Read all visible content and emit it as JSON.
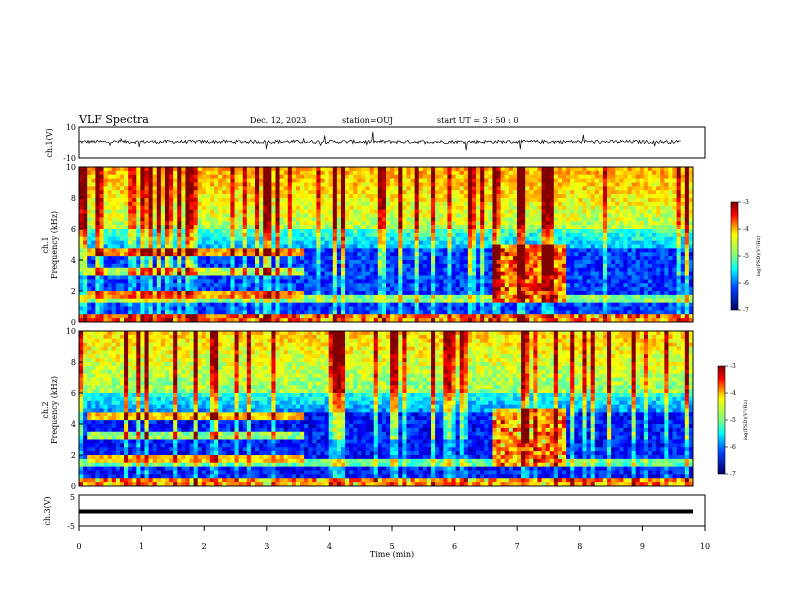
{
  "header": {
    "title": "VLF Spectra",
    "date": "Dec. 12, 2023",
    "station": "station=OUJ",
    "start": "start  UT =   3 : 50 : 0"
  },
  "chart_data": [
    {
      "type": "line",
      "panel": "ch1-waveform",
      "ylabel": "ch.1(V)",
      "ylim": [
        -10,
        10
      ],
      "yticks": [
        "10",
        "-10"
      ],
      "xlim": [
        0,
        10
      ],
      "series_summary": "noisy waveform centered near +1.5 V with sparse spikes"
    },
    {
      "type": "heatmap",
      "panel": "ch1-spectrogram",
      "ylabel": "ch.1\nFrequency (kHz)",
      "xlim": [
        0,
        10
      ],
      "ylim": [
        0,
        10
      ],
      "yticks": [
        "0",
        "2",
        "4",
        "6",
        "8",
        "10"
      ],
      "colorbar": {
        "label": "log(PSD)(V²/Hz)",
        "range": [
          -7,
          -3
        ],
        "ticks": [
          "-3",
          "-4",
          "-5",
          "-6",
          "-7"
        ]
      }
    },
    {
      "type": "heatmap",
      "panel": "ch2-spectrogram",
      "ylabel": "ch.2\nFrequency (kHz)",
      "xlim": [
        0,
        10
      ],
      "ylim": [
        0,
        10
      ],
      "yticks": [
        "0",
        "2",
        "4",
        "6",
        "8",
        "10"
      ],
      "colorbar": {
        "label": "log(PSD)(V²/Hz)",
        "range": [
          -7,
          -3
        ],
        "ticks": [
          "-3",
          "-4",
          "-5",
          "-6",
          "-7"
        ]
      }
    },
    {
      "type": "line",
      "panel": "ch3-waveform",
      "ylabel": "ch.3(V)",
      "ylim": [
        -5,
        5
      ],
      "yticks": [
        "5",
        "-5"
      ],
      "xlim": [
        0,
        10
      ],
      "series_summary": "flat line at about -1 V"
    }
  ],
  "xaxis": {
    "label": "Time  (min)",
    "ticks": [
      "0",
      "1",
      "2",
      "3",
      "4",
      "5",
      "6",
      "7",
      "8",
      "9",
      "10"
    ]
  },
  "colorbar_stops": [
    "#7f0000",
    "#ff0000",
    "#ffa500",
    "#ffff00",
    "#7fff7f",
    "#00ffff",
    "#0080ff",
    "#0000ff",
    "#00007f"
  ],
  "labels": {
    "ch1_waveform_ylabel": "ch.1(V)",
    "ch1_spec_ylabel_top": "ch.1",
    "ch1_spec_ylabel": "Frequency  (kHz)",
    "ch2_spec_ylabel_top": "ch.2",
    "ch2_spec_ylabel": "Frequency  (kHz)",
    "ch3_waveform_ylabel": "ch.3(V)",
    "cbar_label": "log(PSD)(V²/Hz)"
  }
}
